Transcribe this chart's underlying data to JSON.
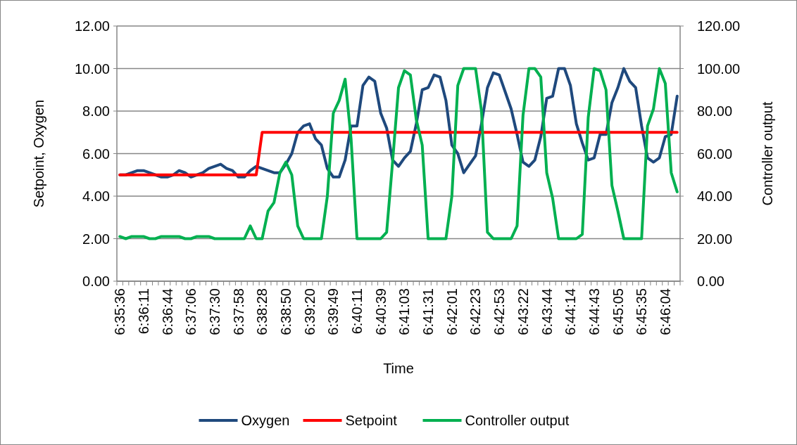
{
  "chart_data": {
    "type": "line",
    "xlabel": "Time",
    "ylabel": "Setpoint, Oxygen",
    "y2label": "Controller output",
    "categories": [
      "6:35:36",
      null,
      null,
      null,
      "6:36:11",
      null,
      null,
      null,
      "6:36:44",
      null,
      null,
      null,
      "6:37:06",
      null,
      null,
      null,
      "6:37:30",
      null,
      null,
      null,
      "6:37:58",
      null,
      null,
      null,
      "6:38:28",
      null,
      null,
      null,
      "6:38:50",
      null,
      null,
      null,
      "6:39:20",
      null,
      null,
      null,
      "6:39:49",
      null,
      null,
      null,
      "6:40:11",
      null,
      null,
      null,
      "6:40:39",
      null,
      null,
      null,
      "6:41:03",
      null,
      null,
      null,
      "6:41:31",
      null,
      null,
      null,
      "6:42:01",
      null,
      null,
      null,
      "6:42:23",
      null,
      null,
      null,
      "6:42:53",
      null,
      null,
      null,
      "6:43:22",
      null,
      null,
      null,
      "6:43:44",
      null,
      null,
      null,
      "6:44:14",
      null,
      null,
      null,
      "6:44:43",
      null,
      null,
      null,
      "6:45:05",
      null,
      null,
      null,
      "6:45:35",
      null,
      null,
      null,
      "6:46:04",
      null,
      null
    ],
    "series": [
      {
        "name": "Oxygen",
        "color": "#1f497d",
        "values": [
          5.0,
          5.0,
          5.1,
          5.2,
          5.2,
          5.1,
          5.0,
          4.9,
          4.9,
          5.0,
          5.2,
          5.1,
          4.9,
          5.0,
          5.1,
          5.3,
          5.4,
          5.5,
          5.3,
          5.2,
          4.9,
          4.9,
          5.2,
          5.4,
          5.3,
          5.2,
          5.1,
          5.1,
          5.5,
          6.0,
          7.0,
          7.3,
          7.4,
          6.7,
          6.4,
          5.3,
          4.9,
          4.9,
          5.7,
          7.3,
          7.3,
          9.2,
          9.6,
          9.4,
          7.9,
          7.2,
          5.7,
          5.4,
          5.8,
          6.1,
          7.4,
          9.0,
          9.1,
          9.7,
          9.6,
          8.5,
          6.4,
          6.0,
          5.1,
          5.5,
          5.9,
          7.4,
          9.1,
          9.8,
          9.7,
          8.9,
          8.1,
          6.9,
          5.6,
          5.4,
          5.7,
          6.8,
          8.6,
          8.7,
          10.0,
          10.0,
          9.2,
          7.4,
          6.5,
          5.7,
          5.8,
          6.9,
          6.9,
          8.4,
          9.1,
          10.0,
          9.4,
          9.1,
          7.3,
          5.8,
          5.6,
          5.8,
          6.8,
          6.9,
          8.7
        ]
      },
      {
        "name": "Setpoint",
        "color": "#ff0000",
        "values": [
          5,
          5,
          5,
          5,
          5,
          5,
          5,
          5,
          5,
          5,
          5,
          5,
          5,
          5,
          5,
          5,
          5,
          5,
          5,
          5,
          5,
          5,
          5,
          5,
          7,
          7,
          7,
          7,
          7,
          7,
          7,
          7,
          7,
          7,
          7,
          7,
          7,
          7,
          7,
          7,
          7,
          7,
          7,
          7,
          7,
          7,
          7,
          7,
          7,
          7,
          7,
          7,
          7,
          7,
          7,
          7,
          7,
          7,
          7,
          7,
          7,
          7,
          7,
          7,
          7,
          7,
          7,
          7,
          7,
          7,
          7,
          7,
          7,
          7,
          7,
          7,
          7,
          7,
          7,
          7,
          7,
          7,
          7,
          7,
          7,
          7,
          7,
          7,
          7,
          7,
          7,
          7,
          7,
          7,
          7
        ]
      },
      {
        "name": "Controller output",
        "color": "#00b050",
        "axis": "y2",
        "values": [
          21,
          20,
          21,
          21,
          21,
          20,
          20,
          21,
          21,
          21,
          21,
          20,
          20,
          21,
          21,
          21,
          20,
          20,
          20,
          20,
          20,
          20,
          26,
          20,
          20,
          33,
          37,
          51,
          56,
          50,
          26,
          20,
          20,
          20,
          20,
          40,
          79,
          85,
          95,
          67,
          20,
          20,
          20,
          20,
          20,
          23,
          56,
          91,
          99,
          97,
          76,
          64,
          20,
          20,
          20,
          20,
          40,
          92,
          100,
          100,
          100,
          80,
          23,
          20,
          20,
          20,
          20,
          26,
          78,
          100,
          100,
          96,
          51,
          39,
          20,
          20,
          20,
          20,
          22,
          77,
          100,
          99,
          90,
          45,
          33,
          20,
          20,
          20,
          20,
          73,
          81,
          100,
          93,
          51,
          42
        ]
      }
    ],
    "ylim": [
      0,
      12
    ],
    "yticks": [
      {
        "value": 0,
        "label": "0.00"
      },
      {
        "value": 2,
        "label": "2.00"
      },
      {
        "value": 4,
        "label": "4.00"
      },
      {
        "value": 6,
        "label": "6.00"
      },
      {
        "value": 8,
        "label": "8.00"
      },
      {
        "value": 10,
        "label": "10.00"
      },
      {
        "value": 12,
        "label": "12.00"
      }
    ],
    "y2lim": [
      0,
      120
    ],
    "y2ticks": [
      {
        "value": 0,
        "label": "0.00"
      },
      {
        "value": 20,
        "label": "20.00"
      },
      {
        "value": 40,
        "label": "40.00"
      },
      {
        "value": 60,
        "label": "60.00"
      },
      {
        "value": 80,
        "label": "80.00"
      },
      {
        "value": 100,
        "label": "100.00"
      },
      {
        "value": 120,
        "label": "120.00"
      }
    ],
    "grid": "y",
    "legend": "bottom",
    "marker": "none",
    "line_style": "solid"
  }
}
